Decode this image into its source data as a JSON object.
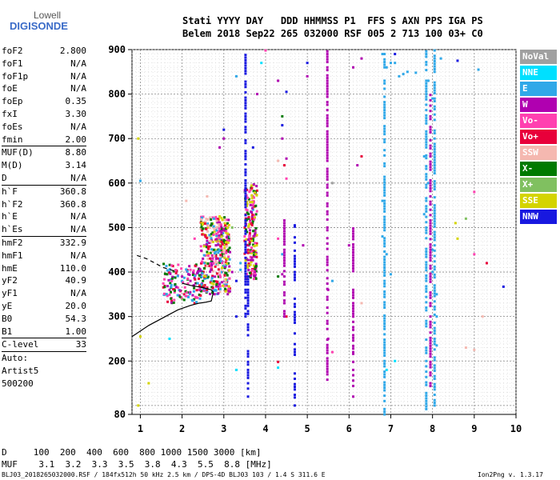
{
  "logo": {
    "top": "Lowell",
    "main": "DIGISONDE"
  },
  "header": {
    "line1": "Stati YYYY DAY   DDD HHMMSS P1  FFS S AXN PPS IGA PS",
    "line2": "Belem 2018 Sep22 265 032000 RSF 005 2 713 100 03+ C0"
  },
  "params": [
    {
      "k": "foF2",
      "v": "2.800"
    },
    {
      "k": "foF1",
      "v": "N/A"
    },
    {
      "k": "foF1p",
      "v": "N/A"
    },
    {
      "k": "foE",
      "v": "N/A"
    },
    {
      "k": "foEp",
      "v": "0.35"
    },
    {
      "k": "fxI",
      "v": "3.30"
    },
    {
      "k": "foEs",
      "v": "N/A"
    },
    {
      "k": "fmin",
      "v": "2.00"
    },
    {
      "k": "MUF(D)",
      "v": "8.80"
    },
    {
      "k": "M(D)",
      "v": "3.14"
    },
    {
      "k": "D",
      "v": "N/A"
    },
    {
      "k": "h`F",
      "v": "360.8"
    },
    {
      "k": "h`F2",
      "v": "360.8"
    },
    {
      "k": "h`E",
      "v": "N/A"
    },
    {
      "k": "h`Es",
      "v": "N/A"
    },
    {
      "k": "hmF2",
      "v": "332.9"
    },
    {
      "k": "hmF1",
      "v": "N/A"
    },
    {
      "k": "hmE",
      "v": "110.0"
    },
    {
      "k": "yF2",
      "v": "40.9"
    },
    {
      "k": "yF1",
      "v": "N/A"
    },
    {
      "k": "yE",
      "v": "20.0"
    },
    {
      "k": "B0",
      "v": "54.3"
    },
    {
      "k": "B1",
      "v": "1.00"
    },
    {
      "k": "C-level",
      "v": "33"
    }
  ],
  "auto": [
    "Auto:",
    "Artist5",
    "500200"
  ],
  "legend": [
    {
      "label": "NoVal",
      "color": "#a0a0a0"
    },
    {
      "label": "NNE",
      "color": "#00e0ff"
    },
    {
      "label": "E",
      "color": "#30a8e8"
    },
    {
      "label": "W",
      "color": "#b000b0"
    },
    {
      "label": "Vo-",
      "color": "#ff40b0"
    },
    {
      "label": "Vo+",
      "color": "#e8003a"
    },
    {
      "label": "SSW",
      "color": "#f5b8b0"
    },
    {
      "label": "X-",
      "color": "#007a00"
    },
    {
      "label": "X+",
      "color": "#80c060"
    },
    {
      "label": "SSE",
      "color": "#d4d400"
    },
    {
      "label": "NNW",
      "color": "#1818e0"
    }
  ],
  "footer": {
    "line1": "D     100  200  400  600  800 1000 1500 3000 [km]",
    "line2": "MUF    3.1  3.2  3.3  3.5  3.8  4.3  5.5  8.8 [MHz]",
    "line3": "BLJ03_2018265032000.RSF / 184fx512h 50 kHz 2.5 km / DPS-4D BLJ03 103 / 1.4 S 311.6 E",
    "version": "Ion2Png v. 1.3.17"
  },
  "chart_data": {
    "type": "scatter",
    "xlabel": "",
    "ylabel": "",
    "xlim": [
      0.8,
      10.0
    ],
    "ylim": [
      80,
      900
    ],
    "xticks": [
      1,
      2,
      3,
      4,
      5,
      6,
      7,
      8,
      9,
      10
    ],
    "yticks": [
      900,
      800,
      700,
      600,
      500,
      400,
      300,
      200,
      80
    ],
    "grid": true,
    "series": [
      {
        "name": "E",
        "color": "#30a8e8",
        "points": [
          [
            1.0,
            605
          ],
          [
            1.7,
            400
          ],
          [
            2.0,
            380
          ],
          [
            2.7,
            380
          ],
          [
            2.8,
            520
          ],
          [
            3.4,
            420
          ],
          [
            3.7,
            540
          ],
          [
            4.4,
            440
          ],
          [
            5.6,
            380
          ],
          [
            6.8,
            890
          ],
          [
            6.9,
            860
          ],
          [
            7.0,
            870
          ],
          [
            7.1,
            870
          ],
          [
            7.2,
            840
          ],
          [
            7.3,
            845
          ],
          [
            7.4,
            850
          ],
          [
            7.6,
            848
          ],
          [
            7.9,
            830
          ],
          [
            8.0,
            790
          ],
          [
            8.2,
            880
          ],
          [
            9.1,
            855
          ],
          [
            2.9,
            505
          ],
          [
            6.8,
            560
          ],
          [
            6.8,
            480
          ],
          [
            6.9,
            440
          ],
          [
            7.0,
            395
          ],
          [
            7.8,
            660
          ],
          [
            7.9,
            600
          ],
          [
            8.0,
            450
          ],
          [
            8.1,
            350
          ],
          [
            8.1,
            300
          ],
          [
            8.1,
            235
          ],
          [
            3.3,
            840
          ],
          [
            3.4,
            405
          ],
          [
            7.8,
            530
          ],
          [
            8.0,
            400
          ],
          [
            2.85,
            500
          ]
        ]
      },
      {
        "name": "W",
        "color": "#b000b0",
        "points": [
          [
            1.7,
            360
          ],
          [
            2.0,
            390
          ],
          [
            2.2,
            380
          ],
          [
            2.5,
            430
          ],
          [
            2.6,
            470
          ],
          [
            2.9,
            430
          ],
          [
            3.2,
            400
          ],
          [
            3.6,
            460
          ],
          [
            3.7,
            445
          ],
          [
            3.0,
            700
          ],
          [
            3.8,
            800
          ],
          [
            4.3,
            830
          ],
          [
            4.4,
            700
          ],
          [
            4.4,
            395
          ],
          [
            4.5,
            655
          ],
          [
            4.9,
            460
          ],
          [
            6.0,
            460
          ],
          [
            6.1,
            860
          ],
          [
            6.2,
            640
          ],
          [
            6.1,
            220
          ],
          [
            6.3,
            880
          ],
          [
            5.5,
            360
          ],
          [
            5.5,
            250
          ],
          [
            5.0,
            840
          ],
          [
            2.9,
            680
          ]
        ]
      },
      {
        "name": "Vo-",
        "color": "#ff40b0",
        "points": [
          [
            1.6,
            395
          ],
          [
            1.9,
            365
          ],
          [
            2.2,
            405
          ],
          [
            2.3,
            475
          ],
          [
            2.5,
            510
          ],
          [
            2.7,
            430
          ],
          [
            3.0,
            440
          ],
          [
            3.5,
            480
          ],
          [
            3.6,
            500
          ],
          [
            4.0,
            898
          ],
          [
            4.3,
            475
          ],
          [
            4.5,
            610
          ],
          [
            5.6,
            220
          ],
          [
            6.1,
            300
          ],
          [
            9.0,
            440
          ],
          [
            9.0,
            580
          ],
          [
            2.4,
            360
          ]
        ]
      },
      {
        "name": "Vo+",
        "color": "#e8003a",
        "points": [
          [
            1.75,
            335
          ],
          [
            2.05,
            350
          ],
          [
            2.4,
            385
          ],
          [
            2.6,
            365
          ],
          [
            2.95,
            400
          ],
          [
            3.5,
            470
          ],
          [
            3.7,
            520
          ],
          [
            4.45,
            640
          ],
          [
            4.5,
            300
          ],
          [
            6.3,
            660
          ],
          [
            9.3,
            420
          ],
          [
            2.3,
            330
          ],
          [
            4.3,
            198
          ]
        ]
      },
      {
        "name": "SSW",
        "color": "#f5b8b0",
        "points": [
          [
            2.1,
            560
          ],
          [
            2.6,
            570
          ],
          [
            3.6,
            560
          ],
          [
            4.3,
            650
          ],
          [
            8.8,
            230
          ],
          [
            9.0,
            225
          ],
          [
            9.2,
            300
          ],
          [
            6.3,
            330
          ]
        ]
      },
      {
        "name": "X-",
        "color": "#007a00",
        "points": [
          [
            1.6,
            350
          ],
          [
            2.5,
            380
          ],
          [
            2.6,
            445
          ],
          [
            3.6,
            520
          ],
          [
            3.7,
            470
          ],
          [
            4.3,
            390
          ],
          [
            4.4,
            750
          ],
          [
            2.9,
            510
          ],
          [
            3.1,
            430
          ]
        ]
      },
      {
        "name": "X+",
        "color": "#80c060",
        "points": [
          [
            2.0,
            340
          ],
          [
            2.9,
            480
          ],
          [
            3.2,
            500
          ],
          [
            3.7,
            570
          ],
          [
            8.8,
            520
          ]
        ]
      },
      {
        "name": "SSE",
        "color": "#d4d400",
        "points": [
          [
            0.95,
            700
          ],
          [
            0.95,
            100
          ],
          [
            1.0,
            255
          ],
          [
            2.9,
            525
          ],
          [
            8.55,
            510
          ],
          [
            8.6,
            475
          ],
          [
            1.2,
            150
          ]
        ]
      },
      {
        "name": "NNW",
        "color": "#1818e0",
        "points": [
          [
            3.0,
            720
          ],
          [
            4.4,
            730
          ],
          [
            4.5,
            805
          ],
          [
            4.7,
            505
          ],
          [
            5.0,
            870
          ],
          [
            7.1,
            890
          ],
          [
            8.6,
            875
          ],
          [
            9.7,
            367
          ],
          [
            3.7,
            680
          ],
          [
            3.3,
            380
          ],
          [
            3.3,
            300
          ]
        ]
      },
      {
        "name": "NoVal",
        "color": "#a0a0a0",
        "points": [
          [
            5.6,
            600
          ],
          [
            3.5,
            580
          ]
        ]
      },
      {
        "name": "NNE",
        "color": "#00e0ff",
        "points": [
          [
            1.7,
            250
          ],
          [
            2.8,
            360
          ],
          [
            3.3,
            180
          ],
          [
            3.9,
            870
          ],
          [
            4.3,
            185
          ],
          [
            6.9,
            180
          ],
          [
            7.1,
            200
          ]
        ]
      }
    ],
    "curve_solid": [
      [
        0.8,
        255
      ],
      [
        1.2,
        280
      ],
      [
        1.6,
        300
      ],
      [
        1.9,
        315
      ],
      [
        2.2,
        325
      ],
      [
        2.4,
        330
      ],
      [
        2.55,
        332
      ],
      [
        2.7,
        335
      ],
      [
        2.75,
        355
      ],
      [
        2.7,
        360
      ],
      [
        2.5,
        365
      ],
      [
        2.2,
        370
      ],
      [
        2.0,
        375
      ]
    ],
    "curve_dashed": [
      [
        1.8,
        403
      ],
      [
        1.55,
        410
      ],
      [
        1.35,
        420
      ],
      [
        1.15,
        430
      ],
      [
        0.9,
        438
      ]
    ]
  }
}
